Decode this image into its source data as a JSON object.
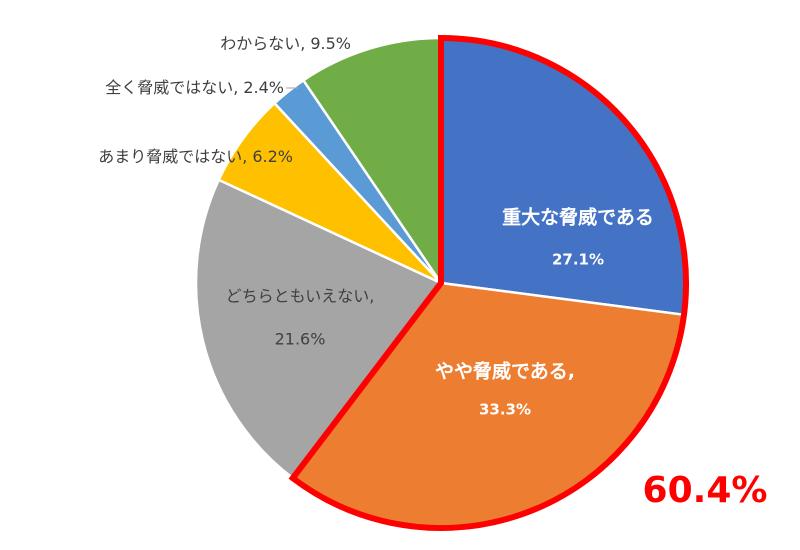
{
  "chart_data": {
    "type": "pie",
    "categories": [
      "重大な脅威である",
      "やや脅威である,",
      "どちらともいえない,",
      "あまり脅威ではない,",
      "全く脅威ではない,",
      "わからない,"
    ],
    "values": [
      27.1,
      33.3,
      21.6,
      6.2,
      2.4,
      9.5
    ],
    "value_labels": [
      "27.1%",
      "33.3%",
      "21.6%",
      "6.2%",
      "2.4%",
      "9.5%"
    ],
    "colors": [
      "#4472c4",
      "#ed7d31",
      "#a5a5a5",
      "#ffc000",
      "#5b9bd5",
      "#70ad47"
    ],
    "highlight": [
      0,
      1
    ],
    "highlight_color": "#ff0000",
    "annotation": "60.4%"
  }
}
